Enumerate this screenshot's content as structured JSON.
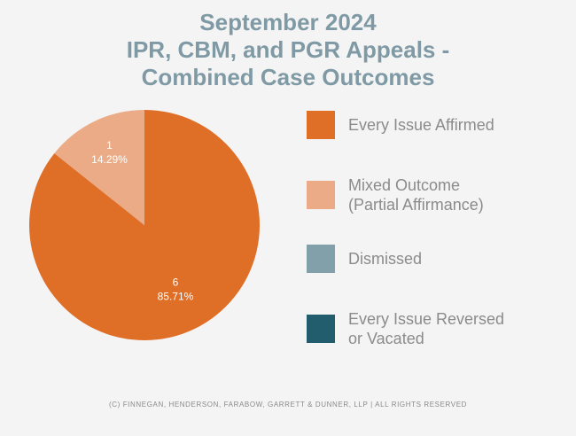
{
  "chart_data": {
    "type": "pie",
    "title": "September 2024 IPR, CBM, and PGR Appeals - Combined Case Outcomes",
    "title_lines": [
      "September 2024",
      "IPR, CBM, and PGR Appeals -",
      "Combined Case Outcomes"
    ],
    "slices": [
      {
        "label": "Every Issue Affirmed",
        "value": 6,
        "percent": "85.71%",
        "color": "#df6e27"
      },
      {
        "label": "Mixed Outcome (Partial Affirmance)",
        "value": 1,
        "percent": "14.29%",
        "color": "#ebab86"
      },
      {
        "label": "Dismissed",
        "value": 0,
        "percent": "0%",
        "color": "#82a0aa"
      },
      {
        "label": "Every Issue Reversed or Vacated",
        "value": 0,
        "percent": "0%",
        "color": "#225d6d"
      }
    ],
    "legend_position": "right"
  },
  "legend": [
    {
      "label": "Every Issue Affirmed",
      "color": "#df6e27"
    },
    {
      "label": "Mixed Outcome\n(Partial Affirmance)",
      "color": "#ebab86"
    },
    {
      "label": "Dismissed",
      "color": "#82a0aa"
    },
    {
      "label": "Every Issue Reversed\nor Vacated",
      "color": "#225d6d"
    }
  ],
  "footer": "(C) FINNEGAN, HENDERSON, FARABOW, GARRETT & DUNNER, LLP | ALL RIGHTS RESERVED"
}
